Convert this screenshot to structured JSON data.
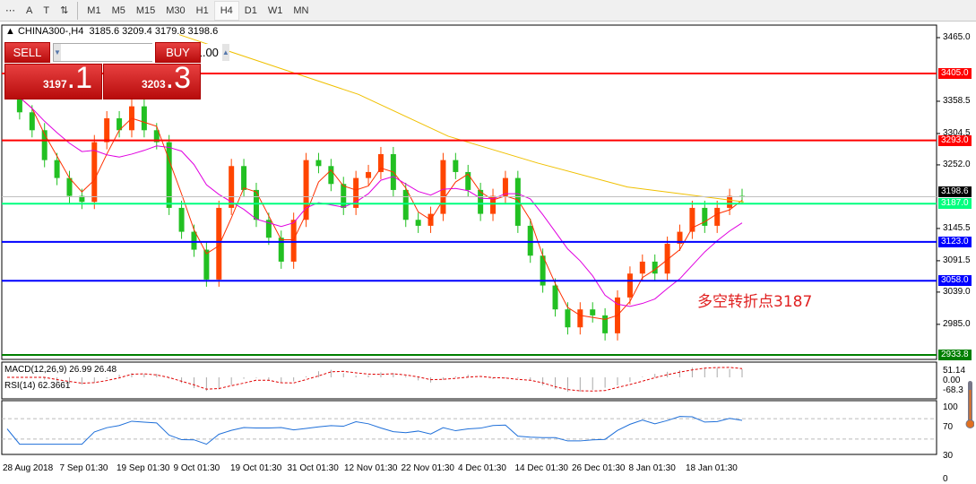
{
  "toolbar": {
    "items": [
      "A",
      "T",
      "⇅"
    ],
    "timeframes": [
      "M1",
      "M5",
      "M15",
      "M30",
      "H1",
      "H4",
      "D1",
      "W1",
      "MN"
    ],
    "active": "H4"
  },
  "symbol": {
    "title": "CHINA300-,H4",
    "ohlc": "3185.6 3209.4 3179.8 3198.6"
  },
  "trade": {
    "sell_label": "SELL",
    "buy_label": "BUY",
    "lot": "1.00",
    "sell_big": "3197",
    "sell_small": ".1",
    "buy_big": "3203",
    "buy_small": ".3"
  },
  "price_axis": [
    "3465.0",
    "3358.5",
    "3304.5",
    "3252.0",
    "3145.5",
    "3091.5",
    "3039.0",
    "2985.0"
  ],
  "levels": [
    {
      "price": 3405.0,
      "label": "3405.0",
      "color": "#ff0000"
    },
    {
      "price": 3293.0,
      "label": "3293.0",
      "color": "#ff0000"
    },
    {
      "price": 3187.0,
      "label": "3187.0",
      "color": "#00ff7f"
    },
    {
      "price": 3123.0,
      "label": "3123.0",
      "color": "#0000ff"
    },
    {
      "price": 3058.0,
      "label": "3058.0",
      "color": "#0000ff"
    },
    {
      "price": 2933.8,
      "label": "2933.8",
      "color": "#007f00"
    }
  ],
  "current_price": {
    "price": 3198.6,
    "label": "3198.6"
  },
  "annotation": "多空转折点3187",
  "closes": [
    3390,
    3340,
    3310,
    3260,
    3230,
    3200,
    3190,
    3290,
    3330,
    3310,
    3350,
    3310,
    3290,
    3180,
    3140,
    3110,
    3060,
    3180,
    3250,
    3210,
    3160,
    3130,
    3090,
    3160,
    3260,
    3250,
    3220,
    3180,
    3230,
    3240,
    3270,
    3210,
    3160,
    3150,
    3170,
    3260,
    3240,
    3210,
    3170,
    3200,
    3230,
    3150,
    3100,
    3050,
    3010,
    2980,
    3010,
    3000,
    2970,
    3030,
    3070,
    3090,
    3070,
    3120,
    3140,
    3180,
    3150,
    3180,
    3200,
    3198.6
  ],
  "ma_long": [
    [
      200,
      3470
    ],
    [
      300,
      3420
    ],
    [
      400,
      3370
    ],
    [
      500,
      3300
    ],
    [
      600,
      3255
    ],
    [
      700,
      3215
    ],
    [
      830,
      3190
    ]
  ],
  "macd": {
    "label": "MACD(12,26,9) 26.99 26.48",
    "axis": [
      "51.14",
      "0.00",
      "-68.3"
    ]
  },
  "rsi": {
    "label": "RSI(14) 62.3661",
    "axis": [
      "100",
      "70",
      "30",
      "0"
    ]
  },
  "dates": [
    "28 Aug 2018",
    "7 Sep 01:30",
    "19 Sep 01:30",
    "9 Oct 01:30",
    "19 Oct 01:30",
    "31 Oct 01:30",
    "12 Nov 01:30",
    "22 Nov 01:30",
    "4 Dec 01:30",
    "14 Dec 01:30",
    "26 Dec 01:30",
    "8 Jan 01:30",
    "18 Jan 01:30"
  ]
}
